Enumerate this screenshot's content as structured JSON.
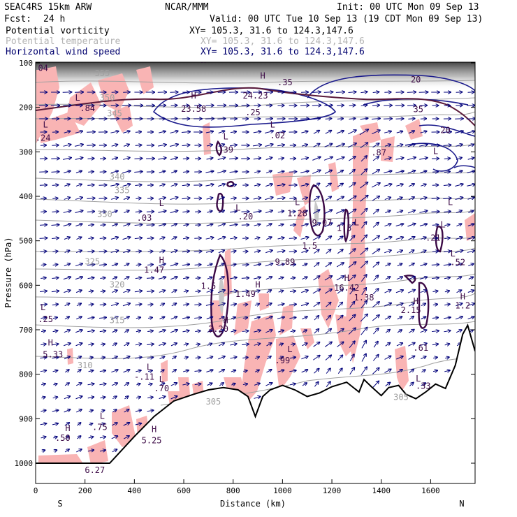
{
  "header": {
    "model": "SEAC4RS 15km ARW",
    "center": "NCAR/MMM",
    "init": "Init: 00 UTC Mon 09 Sep 13",
    "fcst_label": "Fcst:",
    "fcst_value": "24 h",
    "valid": "Valid: 00 UTC Tue 10 Sep 13 (19 CDT Mon 09 Sep 13)"
  },
  "legend": [
    {
      "name": "Potential vorticity",
      "xy": "XY= 105.3, 31.6 to 124.3,147.6",
      "color": "#000000"
    },
    {
      "name": "Potential temperature",
      "xy": "XY= 105.3, 31.6 to 124.3,147.6",
      "color": "#b4b4b4"
    },
    {
      "name": "Horizontal wind speed",
      "xy": "XY= 105.3, 31.6 to 124.3,147.6",
      "color": "#00006e"
    }
  ],
  "colors": {
    "pv_shade": "#f9b4b4",
    "pv_contour": "#3c0a46",
    "theta": "#a0a0a0",
    "wind": "#00007a",
    "terrain": "#000000",
    "strat_gradient": "#555555"
  },
  "chart_data": {
    "type": "cross-section",
    "xlabel": "Distance (km)",
    "ylabel": "Pressure (hPa)",
    "xlim": [
      0,
      1780
    ],
    "ylim": [
      1050,
      100
    ],
    "x_ticks": [
      "0",
      "200",
      "400",
      "600",
      "800",
      "1000",
      "1200",
      "1400",
      "1600"
    ],
    "x_tick_values": [
      0,
      200,
      400,
      600,
      800,
      1000,
      1200,
      1400,
      1600
    ],
    "y_ticks": [
      "100",
      "200",
      "300",
      "400",
      "500",
      "600",
      "700",
      "800",
      "900",
      "1000"
    ],
    "y_tick_values": [
      100,
      200,
      300,
      400,
      500,
      600,
      700,
      800,
      900,
      1000
    ],
    "x_end_labels": {
      "left": "S",
      "right": "N"
    },
    "terrain": [
      [
        0,
        1000
      ],
      [
        150,
        1000
      ],
      [
        300,
        1000
      ],
      [
        400,
        940
      ],
      [
        480,
        895
      ],
      [
        560,
        860
      ],
      [
        640,
        845
      ],
      [
        700,
        835
      ],
      [
        760,
        830
      ],
      [
        820,
        835
      ],
      [
        860,
        850
      ],
      [
        890,
        895
      ],
      [
        920,
        850
      ],
      [
        950,
        835
      ],
      [
        1000,
        825
      ],
      [
        1050,
        835
      ],
      [
        1100,
        850
      ],
      [
        1150,
        842
      ],
      [
        1200,
        828
      ],
      [
        1260,
        818
      ],
      [
        1310,
        840
      ],
      [
        1330,
        812
      ],
      [
        1360,
        828
      ],
      [
        1400,
        848
      ],
      [
        1430,
        830
      ],
      [
        1470,
        825
      ],
      [
        1500,
        845
      ],
      [
        1540,
        855
      ],
      [
        1580,
        840
      ],
      [
        1620,
        822
      ],
      [
        1660,
        832
      ],
      [
        1700,
        780
      ],
      [
        1730,
        710
      ],
      [
        1750,
        690
      ],
      [
        1780,
        748
      ]
    ],
    "theta_levels": [
      "305",
      "310",
      "315",
      "320",
      "325",
      "330",
      "335",
      "340",
      "345",
      "350",
      "355"
    ],
    "theta_labels": [
      {
        "text": "355",
        "x": 270,
        "p": 130
      },
      {
        "text": "350",
        "x": 290,
        "p": 185
      },
      {
        "text": "345",
        "x": 320,
        "p": 220
      },
      {
        "text": "340",
        "x": 330,
        "p": 362
      },
      {
        "text": "335",
        "x": 350,
        "p": 393
      },
      {
        "text": "330",
        "x": 280,
        "p": 446
      },
      {
        "text": "325",
        "x": 230,
        "p": 553
      },
      {
        "text": "320",
        "x": 330,
        "p": 605
      },
      {
        "text": "315",
        "x": 330,
        "p": 685
      },
      {
        "text": "310",
        "x": 200,
        "p": 786
      },
      {
        "text": "305",
        "x": 720,
        "p": 868
      },
      {
        "text": "305",
        "x": 1480,
        "p": 858
      }
    ],
    "pv_labels": [
      {
        "text": ".04",
        "x": 20,
        "p": 118
      },
      {
        "text": ".84",
        "x": 210,
        "p": 208
      },
      {
        "text": ".24",
        "x": 30,
        "p": 275
      },
      {
        "text": "23.58",
        "x": 640,
        "p": 210
      },
      {
        "text": "24.23",
        "x": 890,
        "p": 180
      },
      {
        "text": ".39",
        "x": 770,
        "p": 302
      },
      {
        "text": ".02",
        "x": 980,
        "p": 270
      },
      {
        "text": ".20",
        "x": 850,
        "p": 452
      },
      {
        "text": ".03",
        "x": 440,
        "p": 455
      },
      {
        "text": "1.28",
        "x": 1060,
        "p": 445
      },
      {
        "text": "9.07",
        "x": 1160,
        "p": 466
      },
      {
        "text": "1.5",
        "x": 1250,
        "p": 478
      },
      {
        "text": "1.5",
        "x": 1110,
        "p": 518
      },
      {
        "text": "9.89",
        "x": 1010,
        "p": 554
      },
      {
        "text": "1.47",
        "x": 480,
        "p": 572
      },
      {
        "text": "1.5",
        "x": 700,
        "p": 608
      },
      {
        "text": "1.49",
        "x": 850,
        "p": 626
      },
      {
        "text": "16.42",
        "x": 1260,
        "p": 612
      },
      {
        "text": "1.38",
        "x": 1330,
        "p": 634
      },
      {
        "text": "2.15",
        "x": 1520,
        "p": 662
      },
      {
        "text": ".21",
        "x": 1610,
        "p": 500
      },
      {
        "text": ".52",
        "x": 1710,
        "p": 555
      },
      {
        "text": "1.2",
        "x": 1730,
        "p": 652
      },
      {
        "text": ".25",
        "x": 40,
        "p": 683
      },
      {
        "text": "2.20",
        "x": 740,
        "p": 705
      },
      {
        "text": ".61",
        "x": 1560,
        "p": 747
      },
      {
        "text": "5.33",
        "x": 70,
        "p": 762
      },
      {
        "text": ".99",
        "x": 1000,
        "p": 775
      },
      {
        "text": "-.11",
        "x": 440,
        "p": 812
      },
      {
        "text": ".70",
        "x": 510,
        "p": 838
      },
      {
        "text": ".33",
        "x": 1570,
        "p": 833
      },
      {
        "text": ".75",
        "x": 260,
        "p": 925
      },
      {
        "text": "5.25",
        "x": 470,
        "p": 955
      },
      {
        "text": ".50",
        "x": 110,
        "p": 950
      },
      {
        "text": "6.27",
        "x": 240,
        "p": 1022
      },
      {
        "text": ".25",
        "x": 880,
        "p": 218
      },
      {
        "text": ".87",
        "x": 1390,
        "p": 308
      },
      {
        "text": ".35",
        "x": 1010,
        "p": 150
      },
      {
        "text": "35",
        "x": 1550,
        "p": 211
      },
      {
        "text": "20",
        "x": 1660,
        "p": 258
      },
      {
        "text": "20",
        "x": 1540,
        "p": 144
      }
    ],
    "extrema_marks": [
      {
        "text": "H",
        "x": 640,
        "p": 180
      },
      {
        "text": "H",
        "x": 920,
        "p": 135
      },
      {
        "text": "H",
        "x": 680,
        "p": 100
      },
      {
        "text": "L",
        "x": 170,
        "p": 185
      },
      {
        "text": "L",
        "x": 40,
        "p": 245
      },
      {
        "text": "L",
        "x": 770,
        "p": 272
      },
      {
        "text": "L",
        "x": 960,
        "p": 245
      },
      {
        "text": "L",
        "x": 820,
        "p": 432
      },
      {
        "text": "L",
        "x": 510,
        "p": 422
      },
      {
        "text": "L",
        "x": 1060,
        "p": 420
      },
      {
        "text": "L",
        "x": 1300,
        "p": 465
      },
      {
        "text": "L",
        "x": 1680,
        "p": 420
      },
      {
        "text": "L",
        "x": 1690,
        "p": 535
      },
      {
        "text": "H",
        "x": 510,
        "p": 550
      },
      {
        "text": "H",
        "x": 900,
        "p": 605
      },
      {
        "text": "H",
        "x": 1260,
        "p": 590
      },
      {
        "text": "H",
        "x": 1540,
        "p": 642
      },
      {
        "text": "H",
        "x": 1730,
        "p": 632
      },
      {
        "text": "H",
        "x": 770,
        "p": 685
      },
      {
        "text": "L",
        "x": 30,
        "p": 656
      },
      {
        "text": "H",
        "x": 60,
        "p": 735
      },
      {
        "text": "L",
        "x": 1030,
        "p": 750
      },
      {
        "text": "L",
        "x": 460,
        "p": 790
      },
      {
        "text": "L",
        "x": 510,
        "p": 818
      },
      {
        "text": "L",
        "x": 1550,
        "p": 816
      },
      {
        "text": "L",
        "x": 270,
        "p": 900
      },
      {
        "text": "H",
        "x": 130,
        "p": 928
      },
      {
        "text": "H",
        "x": 480,
        "p": 930
      },
      {
        "text": "L",
        "x": 1620,
        "p": 305
      },
      {
        "text": "L",
        "x": 1650,
        "p": 470
      }
    ]
  }
}
